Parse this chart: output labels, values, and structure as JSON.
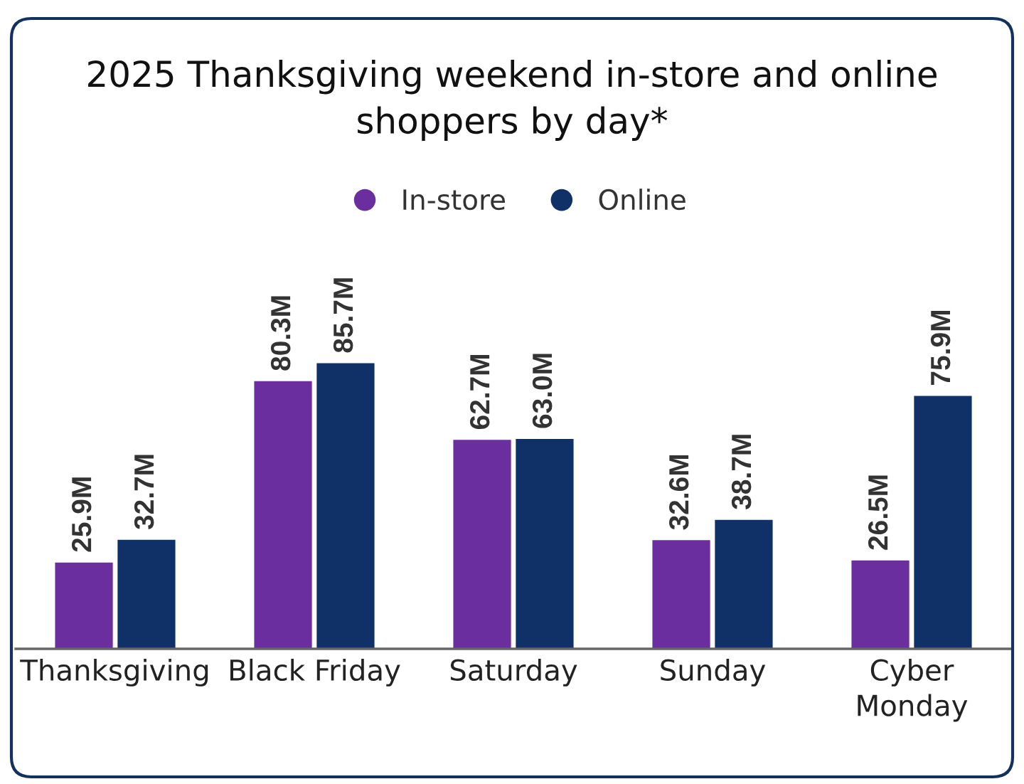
{
  "chart_data": {
    "type": "bar",
    "title": "2025 Thanksgiving weekend in-store and online\nshoppers by day*",
    "categories": [
      "Thanksgiving",
      "Black Friday",
      "Saturday",
      "Sunday",
      "Cyber\nMonday"
    ],
    "series": [
      {
        "name": "In-store",
        "color": "#6a2e9f",
        "values": [
          25.9,
          80.3,
          62.7,
          32.6,
          26.5
        ],
        "value_labels": [
          "25.9M",
          "80.3M",
          "62.7M",
          "32.6M",
          "26.5M"
        ]
      },
      {
        "name": "Online",
        "color": "#0f3168",
        "values": [
          32.7,
          85.7,
          63.0,
          38.7,
          75.9
        ],
        "value_labels": [
          "32.7M",
          "85.7M",
          "63.0M",
          "38.7M",
          "75.9M"
        ]
      }
    ],
    "legend": "top",
    "tick_labels": "x"
  }
}
